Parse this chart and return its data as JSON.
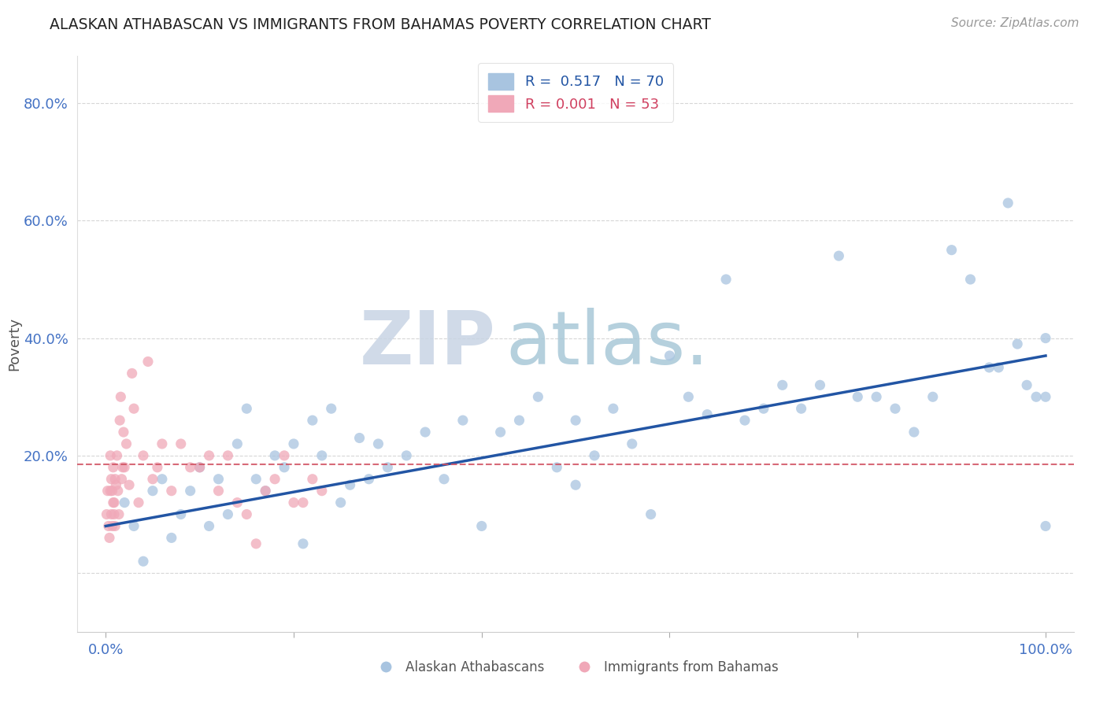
{
  "title": "ALASKAN ATHABASCAN VS IMMIGRANTS FROM BAHAMAS POVERTY CORRELATION CHART",
  "source": "Source: ZipAtlas.com",
  "ylabel": "Poverty",
  "x_tick_labels": [
    "0.0%",
    "",
    "",
    "",
    "",
    "100.0%"
  ],
  "y_tick_labels": [
    "",
    "20.0%",
    "40.0%",
    "60.0%",
    "80.0%"
  ],
  "blue_R": 0.517,
  "blue_N": 70,
  "pink_R": 0.001,
  "pink_N": 53,
  "blue_color": "#a8c4e0",
  "pink_color": "#f0a8b8",
  "blue_line_color": "#2255a4",
  "pink_line_color": "#d05060",
  "watermark_zip": "ZIP",
  "watermark_atlas": "atlas.",
  "watermark_color_zip": "#c8d4e4",
  "watermark_color_atlas": "#a8c8d8",
  "legend_label_blue": "Alaskan Athabascans",
  "legend_label_pink": "Immigrants from Bahamas",
  "blue_x": [
    2,
    3,
    4,
    5,
    6,
    7,
    8,
    9,
    10,
    11,
    12,
    13,
    14,
    15,
    16,
    17,
    18,
    19,
    20,
    21,
    22,
    23,
    24,
    25,
    26,
    27,
    28,
    29,
    30,
    32,
    34,
    36,
    38,
    40,
    42,
    44,
    46,
    48,
    50,
    52,
    54,
    56,
    58,
    60,
    62,
    64,
    66,
    68,
    70,
    72,
    74,
    76,
    78,
    80,
    82,
    84,
    86,
    88,
    90,
    92,
    94,
    96,
    97,
    98,
    99,
    100,
    100,
    100,
    50,
    95
  ],
  "blue_y": [
    12,
    8,
    2,
    14,
    16,
    6,
    10,
    14,
    18,
    8,
    16,
    10,
    22,
    28,
    16,
    14,
    20,
    18,
    22,
    5,
    26,
    20,
    28,
    12,
    15,
    23,
    16,
    22,
    18,
    20,
    24,
    16,
    26,
    8,
    24,
    26,
    30,
    18,
    26,
    20,
    28,
    22,
    10,
    37,
    30,
    27,
    50,
    26,
    28,
    32,
    28,
    32,
    54,
    30,
    30,
    28,
    24,
    30,
    55,
    50,
    35,
    63,
    39,
    32,
    30,
    8,
    30,
    40,
    15,
    35
  ],
  "pink_x": [
    0.1,
    0.2,
    0.3,
    0.4,
    0.5,
    0.5,
    0.6,
    0.6,
    0.7,
    0.7,
    0.8,
    0.8,
    0.9,
    0.9,
    1.0,
    1.0,
    1.1,
    1.2,
    1.3,
    1.4,
    1.5,
    1.6,
    1.7,
    1.8,
    1.9,
    2.0,
    2.2,
    2.5,
    2.8,
    3.0,
    3.5,
    4.0,
    4.5,
    5.0,
    5.5,
    6.0,
    7.0,
    8.0,
    9.0,
    10.0,
    11.0,
    12.0,
    13.0,
    14.0,
    15.0,
    16.0,
    17.0,
    18.0,
    19.0,
    20.0,
    21.0,
    22.0,
    23.0
  ],
  "pink_y": [
    10,
    14,
    8,
    6,
    20,
    14,
    16,
    10,
    14,
    8,
    18,
    12,
    12,
    10,
    16,
    8,
    15,
    20,
    14,
    10,
    26,
    30,
    16,
    18,
    24,
    18,
    22,
    15,
    34,
    28,
    12,
    20,
    36,
    16,
    18,
    22,
    14,
    22,
    18,
    18,
    20,
    14,
    20,
    12,
    10,
    5,
    14,
    16,
    20,
    12,
    12,
    16,
    14
  ],
  "pink_line_y": 18.5,
  "blue_line_x0": 0,
  "blue_line_y0": 8,
  "blue_line_x1": 100,
  "blue_line_y1": 37,
  "xlim": [
    -3,
    103
  ],
  "ylim": [
    -10,
    88
  ],
  "figsize": [
    14.06,
    8.92
  ],
  "dpi": 100
}
